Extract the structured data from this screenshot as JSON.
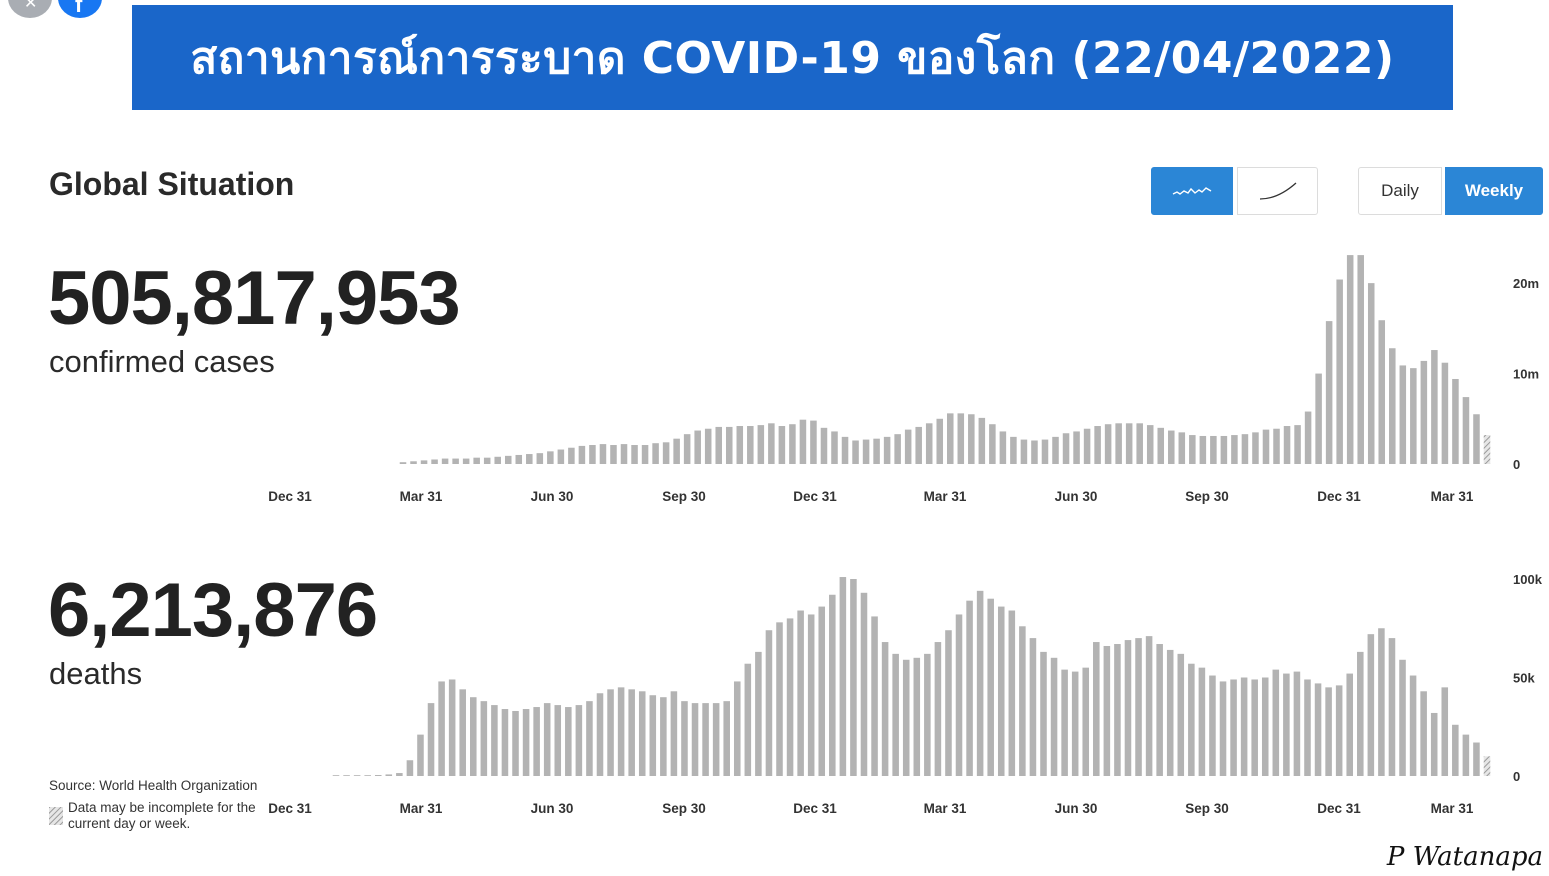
{
  "banner": {
    "title": "สถานการณ์การระบาด COVID-19 ของโลก (22/04/2022)"
  },
  "section": {
    "title": "Global Situation"
  },
  "toggles": {
    "daily_label": "Daily",
    "weekly_label": "Weekly",
    "active_period": "Weekly",
    "active_mode": "wavy-line-icon"
  },
  "cases": {
    "total": "505,817,953",
    "label": "confirmed cases"
  },
  "deaths": {
    "total": "6,213,876",
    "label": "deaths"
  },
  "source": {
    "text": "Source:  World Health Organization"
  },
  "note": {
    "text": "Data may be incomplete for the current day or week."
  },
  "signature": {
    "text": "P Watanapa"
  },
  "colors": {
    "banner": "#1a66c9",
    "accent": "#2b86d6",
    "bar": "#b3b3b3"
  },
  "chart_data": [
    {
      "type": "bar",
      "title": "",
      "xlabel": "",
      "ylabel": "",
      "x_tick_labels": [
        "Dec 31",
        "Mar 31",
        "Jun 30",
        "Sep 30",
        "Dec 31",
        "Mar 31",
        "Jun 30",
        "Sep 30",
        "Dec 31",
        "Mar 31"
      ],
      "y_tick_labels": [
        "20m",
        "10m",
        "0"
      ],
      "y_tick_values": [
        20000000,
        10000000,
        0
      ],
      "ylim": [
        0,
        23000000
      ],
      "grid": false,
      "last_bar_incomplete": true,
      "series": [
        {
          "values": [
            0.2,
            0.3,
            0.4,
            0.5,
            0.6,
            0.6,
            0.6,
            0.7,
            0.7,
            0.8,
            0.9,
            1.0,
            1.1,
            1.2,
            1.4,
            1.6,
            1.8,
            2.0,
            2.1,
            2.2,
            2.1,
            2.2,
            2.1,
            2.1,
            2.3,
            2.4,
            2.8,
            3.3,
            3.7,
            3.9,
            4.1,
            4.1,
            4.2,
            4.2,
            4.3,
            4.5,
            4.2,
            4.4,
            4.9,
            4.8,
            4.0,
            3.6,
            3.0,
            2.6,
            2.7,
            2.8,
            3.0,
            3.3,
            3.8,
            4.1,
            4.5,
            5.0,
            5.6,
            5.6,
            5.5,
            5.1,
            4.4,
            3.6,
            3.0,
            2.7,
            2.6,
            2.7,
            3.0,
            3.4,
            3.6,
            3.9,
            4.2,
            4.4,
            4.5,
            4.5,
            4.5,
            4.3,
            4.0,
            3.7,
            3.5,
            3.2,
            3.1,
            3.1,
            3.1,
            3.2,
            3.3,
            3.5,
            3.8,
            3.9,
            4.2,
            4.3,
            5.8,
            10.0,
            15.8,
            20.4,
            23.1,
            23.1,
            20.0,
            15.9,
            12.8,
            10.9,
            10.6,
            11.4,
            12.6,
            11.2,
            9.4,
            7.4,
            5.5,
            3.2
          ]
        }
      ]
    },
    {
      "type": "bar",
      "title": "",
      "xlabel": "",
      "ylabel": "",
      "x_tick_labels": [
        "Dec 31",
        "Mar 31",
        "Jun 30",
        "Sep 30",
        "Dec 31",
        "Mar 31",
        "Jun 30",
        "Sep 30",
        "Dec 31",
        "Mar 31"
      ],
      "y_tick_labels": [
        "100k",
        "50k",
        "0"
      ],
      "y_tick_values": [
        100000,
        50000,
        0
      ],
      "ylim": [
        0,
        100000
      ],
      "grid": false,
      "last_bar_incomplete": true,
      "series": [
        {
          "values": [
            0.2,
            0.3,
            0.3,
            0.4,
            0.5,
            0.8,
            1.5,
            8,
            21,
            37,
            48,
            49,
            44,
            40,
            38,
            36,
            34,
            33,
            34,
            35,
            37,
            36,
            35,
            36,
            38,
            42,
            44,
            45,
            44,
            43,
            41,
            40,
            43,
            38,
            37,
            37,
            37,
            38,
            48,
            57,
            63,
            74,
            78,
            80,
            84,
            82,
            86,
            92,
            101,
            100,
            93,
            81,
            68,
            62,
            59,
            60,
            62,
            68,
            74,
            82,
            89,
            94,
            90,
            86,
            84,
            76,
            70,
            63,
            60,
            54,
            53,
            55,
            68,
            66,
            67,
            69,
            70,
            71,
            67,
            64,
            62,
            57,
            55,
            51,
            48,
            49,
            50,
            49,
            50,
            54,
            52,
            53,
            49,
            47,
            45,
            46,
            52,
            63,
            72,
            75,
            70,
            59,
            51,
            43,
            32,
            45,
            26,
            21,
            17,
            10
          ]
        }
      ]
    }
  ]
}
